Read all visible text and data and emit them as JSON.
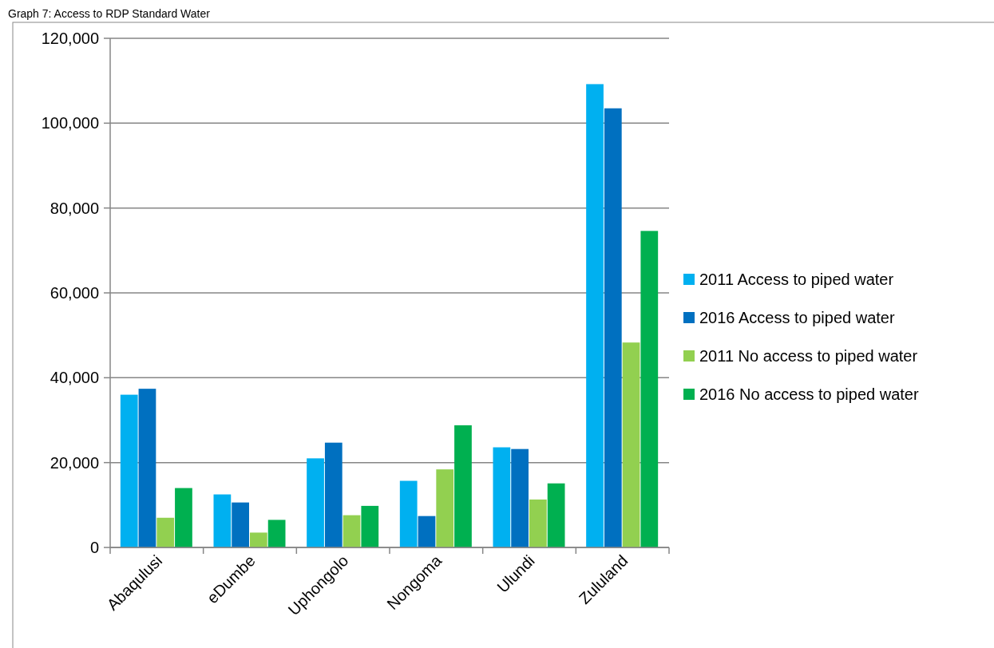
{
  "chart_data": {
    "type": "bar",
    "title": "Graph 7: Access to RDP Standard Water",
    "categories": [
      "Abaqulusi",
      "eDumbe",
      "Uphongolo",
      "Nongoma",
      "Ulundi",
      "Zululand"
    ],
    "series": [
      {
        "name": "2011 Access to piped water",
        "color": "#00b0f0",
        "values": [
          36000,
          12500,
          21000,
          15700,
          23600,
          109200
        ]
      },
      {
        "name": "2016 Access to piped water",
        "color": "#0070c0",
        "values": [
          37400,
          10600,
          24700,
          7400,
          23200,
          103500
        ]
      },
      {
        "name": "2011 No access to piped water",
        "color": "#92d050",
        "values": [
          7000,
          3500,
          7600,
          18400,
          11300,
          48300
        ]
      },
      {
        "name": "2016 No access to piped water",
        "color": "#00b050",
        "values": [
          14000,
          6500,
          9800,
          28800,
          15100,
          74600
        ]
      }
    ],
    "ylim": [
      0,
      120000
    ],
    "yticks": [
      {
        "value": 0,
        "label": "0"
      },
      {
        "value": 20000,
        "label": "20,000"
      },
      {
        "value": 40000,
        "label": "40,000"
      },
      {
        "value": 60000,
        "label": "60,000"
      },
      {
        "value": 80000,
        "label": "80,000"
      },
      {
        "value": 100000,
        "label": "100,000"
      },
      {
        "value": 120000,
        "label": "120,000"
      }
    ],
    "grid": "y",
    "legend": "right"
  }
}
